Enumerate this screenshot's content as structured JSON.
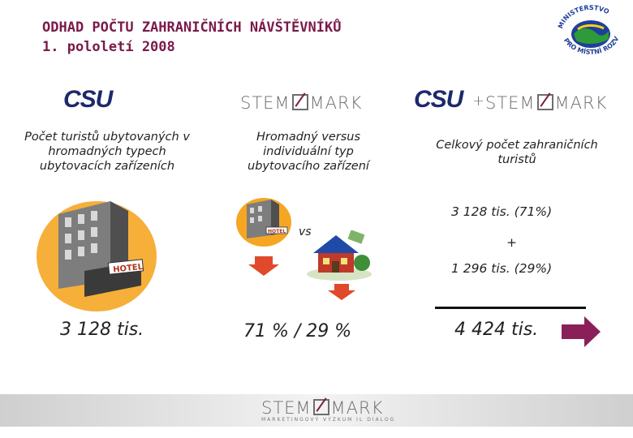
{
  "title": {
    "line1": "ODHAD POČTU ZAHRANIČNÍCH NÁVŠTĚVNÍKŮ",
    "line2": "1. pololetí 2008"
  },
  "ministry_logo": {
    "text": "MINISTERSTVO PRO MÍSTNÍ ROZVOJ",
    "colors": {
      "blue": "#1f3f9a",
      "green": "#2e9a3a",
      "yellow": "#f2d21b"
    }
  },
  "logos": {
    "csu": "CSU",
    "stemmark_left": "STEM",
    "stemmark_right": "MARK",
    "plus": "+"
  },
  "columns": [
    {
      "description": "Počet turistů ubytovaných v hromadných typech ubytovacích zařízeních",
      "value": "3 128 tis."
    },
    {
      "description": "Hromadný versus individuální typ ubytovacího zařízení",
      "vs": "vs",
      "value": "71 % / 29 %"
    },
    {
      "description": "Celkový počet zahraničních turistů",
      "part1": "3 128 tis. (71%)",
      "plus": "+",
      "part2": "1 296 tis. (29%)",
      "value": "4 424  tis."
    }
  ],
  "illustration": {
    "hotel_sign": "HOTEL",
    "small_hotel_sign": "HOTEL"
  },
  "footer": {
    "logo_left": "STEM",
    "logo_right": "MARK",
    "tagline": "MARKETINGOVÝ VÝZKUM IL DIALOG"
  },
  "colors": {
    "accent": "#7a1a4a",
    "arrow": "#8b1f5a",
    "csu_blue": "#1c2a6b",
    "down_arrow": "#e0492a"
  }
}
